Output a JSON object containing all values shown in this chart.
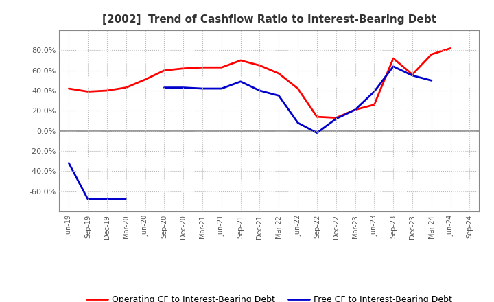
{
  "title": "[2002]  Trend of Cashflow Ratio to Interest-Bearing Debt",
  "x_labels": [
    "Jun-19",
    "Sep-19",
    "Dec-19",
    "Mar-20",
    "Jun-20",
    "Sep-20",
    "Dec-20",
    "Mar-21",
    "Jun-21",
    "Sep-21",
    "Dec-21",
    "Mar-22",
    "Jun-22",
    "Sep-22",
    "Dec-22",
    "Mar-23",
    "Jun-23",
    "Sep-23",
    "Dec-23",
    "Mar-24",
    "Jun-24",
    "Sep-24"
  ],
  "operating_cf": [
    42,
    39,
    40,
    43,
    51,
    60,
    62,
    63,
    63,
    70,
    65,
    57,
    42,
    14,
    13,
    21,
    26,
    72,
    56,
    76,
    82,
    null
  ],
  "free_cf": [
    -32,
    -68,
    -68,
    -68,
    null,
    43,
    43,
    42,
    42,
    49,
    40,
    35,
    8,
    -2,
    12,
    21,
    39,
    64,
    55,
    50,
    null,
    null
  ],
  "ylim": [
    -80,
    100
  ],
  "yticks": [
    -60,
    -40,
    -20,
    0,
    20,
    40,
    60,
    80
  ],
  "operating_color": "#FF0000",
  "free_color": "#0000CC",
  "background_color": "#FFFFFF",
  "grid_color": "#BBBBBB",
  "legend_op": "Operating CF to Interest-Bearing Debt",
  "legend_free": "Free CF to Interest-Bearing Debt"
}
